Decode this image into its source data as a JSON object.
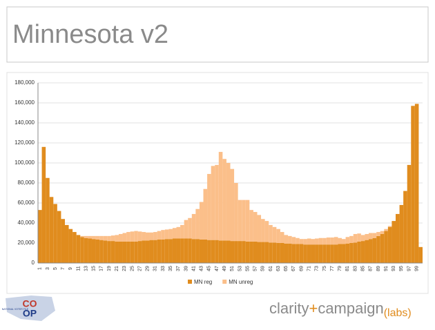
{
  "slide": {
    "title": "Minnesota v2"
  },
  "chart_data": {
    "type": "stacked_bar",
    "categories": [
      1,
      null,
      3,
      null,
      5,
      null,
      7,
      null,
      9,
      null,
      11,
      null,
      13,
      null,
      15,
      null,
      17,
      null,
      19,
      null,
      21,
      null,
      23,
      null,
      25,
      null,
      27,
      null,
      29,
      null,
      31,
      null,
      33,
      null,
      35,
      null,
      37,
      null,
      39,
      null,
      41,
      null,
      43,
      null,
      45,
      null,
      47,
      null,
      49,
      null,
      51,
      null,
      53,
      null,
      55,
      null,
      57,
      null,
      59,
      null,
      61,
      null,
      63,
      null,
      65,
      null,
      67,
      null,
      69,
      null,
      71,
      null,
      73,
      null,
      75,
      null,
      77,
      null,
      79,
      null,
      81,
      null,
      83,
      null,
      85,
      null,
      87,
      null,
      89,
      null,
      91,
      null,
      93,
      null,
      95,
      null,
      97,
      null,
      99,
      null
    ],
    "series": [
      {
        "name": "MN reg",
        "color": "#e08c1e",
        "values": [
          53000,
          116000,
          85000,
          66000,
          59000,
          52000,
          44000,
          38000,
          34000,
          31000,
          28000,
          26000,
          25000,
          24500,
          24000,
          23500,
          23000,
          22500,
          22000,
          22000,
          21500,
          21500,
          21500,
          21500,
          21500,
          21500,
          22000,
          22500,
          22500,
          23000,
          23000,
          23500,
          23500,
          24000,
          24000,
          24500,
          24500,
          24500,
          24500,
          24500,
          24000,
          24000,
          23500,
          23500,
          23000,
          23000,
          23000,
          22500,
          22500,
          22500,
          22000,
          22000,
          22000,
          22000,
          21500,
          21500,
          21500,
          21000,
          21000,
          21000,
          20500,
          20500,
          20000,
          20000,
          19500,
          19500,
          19000,
          19000,
          19000,
          18500,
          18500,
          18500,
          18500,
          18500,
          18500,
          18500,
          18500,
          18500,
          19000,
          19000,
          19500,
          20000,
          20500,
          21500,
          22000,
          23000,
          24000,
          25000,
          27000,
          29000,
          32000,
          36000,
          42000,
          49000,
          58000,
          72000,
          98000,
          157000,
          159000,
          16000
        ]
      },
      {
        "name": "MN unreg",
        "color": "#fbbf8a",
        "values": [
          0,
          0,
          0,
          0,
          0,
          0,
          0,
          0,
          0,
          0,
          0,
          1000,
          2000,
          2500,
          3000,
          3500,
          4000,
          4500,
          5000,
          5500,
          6500,
          7500,
          8500,
          9500,
          10000,
          10500,
          9500,
          8500,
          8000,
          7500,
          8000,
          8500,
          9500,
          9500,
          10000,
          10500,
          11500,
          13500,
          18500,
          20500,
          25000,
          30000,
          37500,
          50500,
          66000,
          74000,
          75000,
          88500,
          81500,
          77500,
          72000,
          58000,
          41000,
          41000,
          41500,
          31500,
          29500,
          27000,
          23000,
          21000,
          17500,
          15500,
          14000,
          11000,
          8500,
          7500,
          7000,
          6000,
          5000,
          5500,
          6000,
          5500,
          6000,
          6500,
          6500,
          7000,
          7000,
          7500,
          6000,
          5000,
          6500,
          7000,
          8500,
          8000,
          6000,
          6000,
          6000,
          5000,
          4000,
          3000,
          2000,
          1000,
          0,
          0,
          0,
          0,
          0,
          0,
          0,
          0
        ]
      }
    ],
    "ylim": [
      0,
      180000
    ],
    "yticks": [
      0,
      {
        "value": 20000,
        "label": "20,000"
      },
      {
        "value": 40000,
        "label": "40,000"
      },
      {
        "value": 60000,
        "label": "60,000"
      },
      {
        "value": 80000,
        "label": "80,000"
      },
      {
        "value": 100000,
        "label": "100,000"
      },
      {
        "value": 120000,
        "label": "120,000"
      },
      {
        "value": 140000,
        "label": "140,000"
      },
      {
        "value": 160000,
        "label": "160,000"
      },
      {
        "value": 180000,
        "label": "180,000"
      }
    ],
    "grid": true,
    "legend": "bottom"
  },
  "footer": {
    "coop_top": "CO",
    "coop_bottom": "OP",
    "coop_caption": "NATIONAL VOTER FILE",
    "brand_a": "clarity",
    "brand_plus": "+",
    "brand_b": "campaign",
    "brand_labs": "(labs)"
  }
}
